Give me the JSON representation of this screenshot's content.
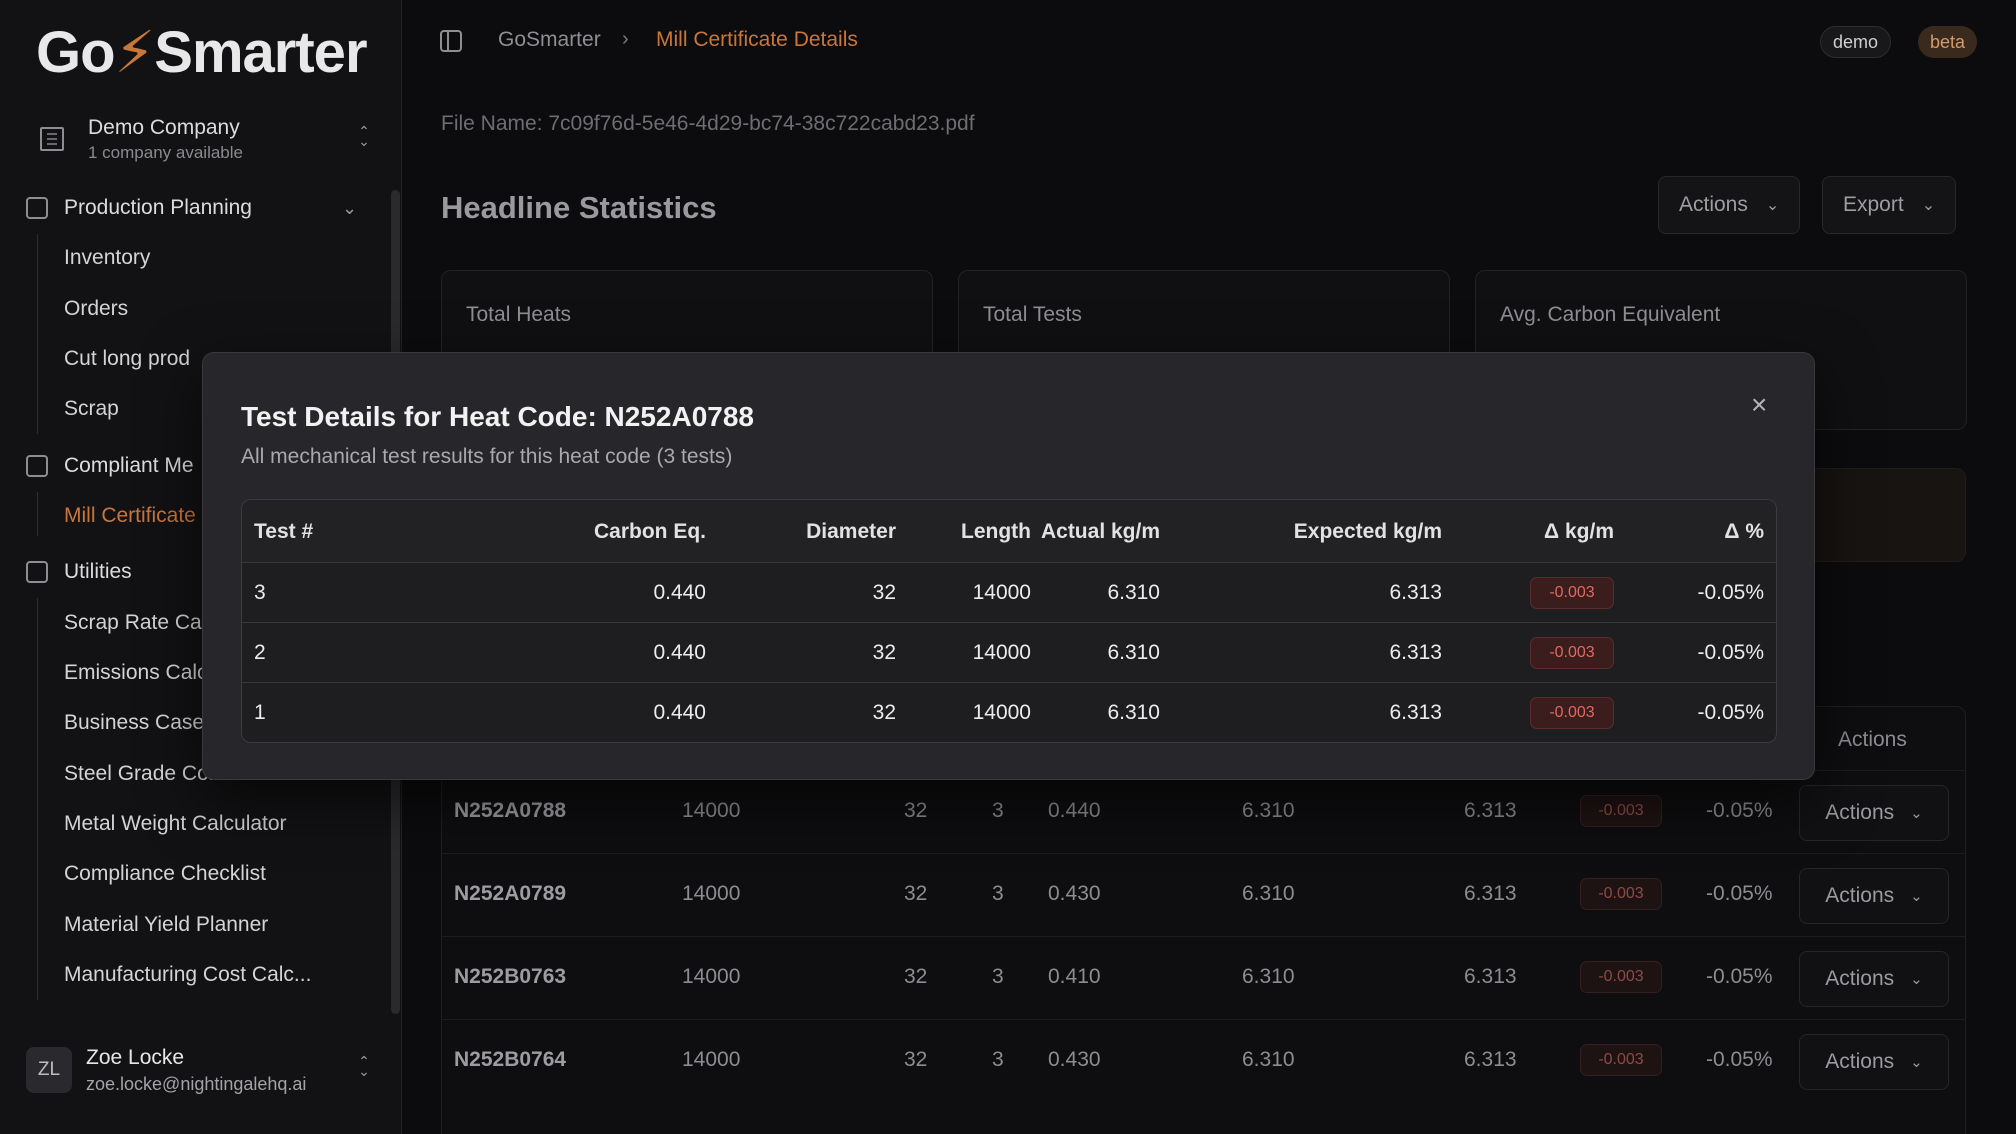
{
  "sidebar": {
    "logo_a": "Go",
    "logo_bolt": "⚡",
    "logo_b": "Smarter",
    "company": {
      "name": "Demo Company",
      "sub": "1 company available"
    },
    "sections": [
      {
        "label": "Production Planning",
        "items": [
          "Inventory",
          "Orders",
          "Cut long prod",
          "Scrap"
        ]
      },
      {
        "label": "Compliant Me",
        "items": [
          "Mill Certificate"
        ]
      },
      {
        "label": "Utilities",
        "items": [
          "Scrap Rate Cal",
          "Emissions Calc",
          "Business Case",
          "Steel Grade Converter",
          "Metal Weight Calculator",
          "Compliance Checklist",
          "Material Yield Planner",
          "Manufacturing Cost Calc..."
        ]
      }
    ],
    "user": {
      "initials": "ZL",
      "name": "Zoe Locke",
      "email": "zoe.locke@nightingalehq.ai"
    }
  },
  "header": {
    "breadcrumb_root": "GoSmarter",
    "breadcrumb_current": "Mill Certificate Details",
    "badge_demo": "demo",
    "badge_beta": "beta"
  },
  "page": {
    "filename": "File Name: 7c09f76d-5e46-4d29-bc74-38c722cabd23.pdf",
    "headline": "Headline Statistics",
    "actions_label": "Actions",
    "export_label": "Export",
    "stats": [
      "Total Heats",
      "Total Tests",
      "Avg. Carbon Equivalent"
    ],
    "table_actions_header": "Actions",
    "rows": [
      {
        "code": "N252A0788",
        "length": "14000",
        "diameter": "32",
        "tests": "3",
        "ce": "0.440",
        "actual": "6.310",
        "expected": "6.313",
        "delta": "-0.003",
        "pct": "-0.05%",
        "action": "Actions"
      },
      {
        "code": "N252A0789",
        "length": "14000",
        "diameter": "32",
        "tests": "3",
        "ce": "0.430",
        "actual": "6.310",
        "expected": "6.313",
        "delta": "-0.003",
        "pct": "-0.05%",
        "action": "Actions"
      },
      {
        "code": "N252B0763",
        "length": "14000",
        "diameter": "32",
        "tests": "3",
        "ce": "0.410",
        "actual": "6.310",
        "expected": "6.313",
        "delta": "-0.003",
        "pct": "-0.05%",
        "action": "Actions"
      },
      {
        "code": "N252B0764",
        "length": "14000",
        "diameter": "32",
        "tests": "3",
        "ce": "0.430",
        "actual": "6.310",
        "expected": "6.313",
        "delta": "-0.003",
        "pct": "-0.05%",
        "action": "Actions"
      }
    ]
  },
  "modal": {
    "title": "Test Details for Heat Code: N252A0788",
    "description": "All mechanical test results for this heat code (3 tests)",
    "close": "×",
    "columns": [
      "Test #",
      "Carbon Eq.",
      "Diameter",
      "Length",
      "Actual kg/m",
      "Expected kg/m",
      "Δ kg/m",
      "Δ %"
    ],
    "rows": [
      {
        "test": "3",
        "ce": "0.440",
        "diameter": "32",
        "length": "14000",
        "actual": "6.310",
        "expected": "6.313",
        "delta": "-0.003",
        "pct": "-0.05%"
      },
      {
        "test": "2",
        "ce": "0.440",
        "diameter": "32",
        "length": "14000",
        "actual": "6.310",
        "expected": "6.313",
        "delta": "-0.003",
        "pct": "-0.05%"
      },
      {
        "test": "1",
        "ce": "0.440",
        "diameter": "32",
        "length": "14000",
        "actual": "6.310",
        "expected": "6.313",
        "delta": "-0.003",
        "pct": "-0.05%"
      }
    ]
  },
  "colors": {
    "accent": "#c9763a",
    "negative": "#e06a5f",
    "background": "#0c0c0e",
    "modal": "#27272b"
  }
}
